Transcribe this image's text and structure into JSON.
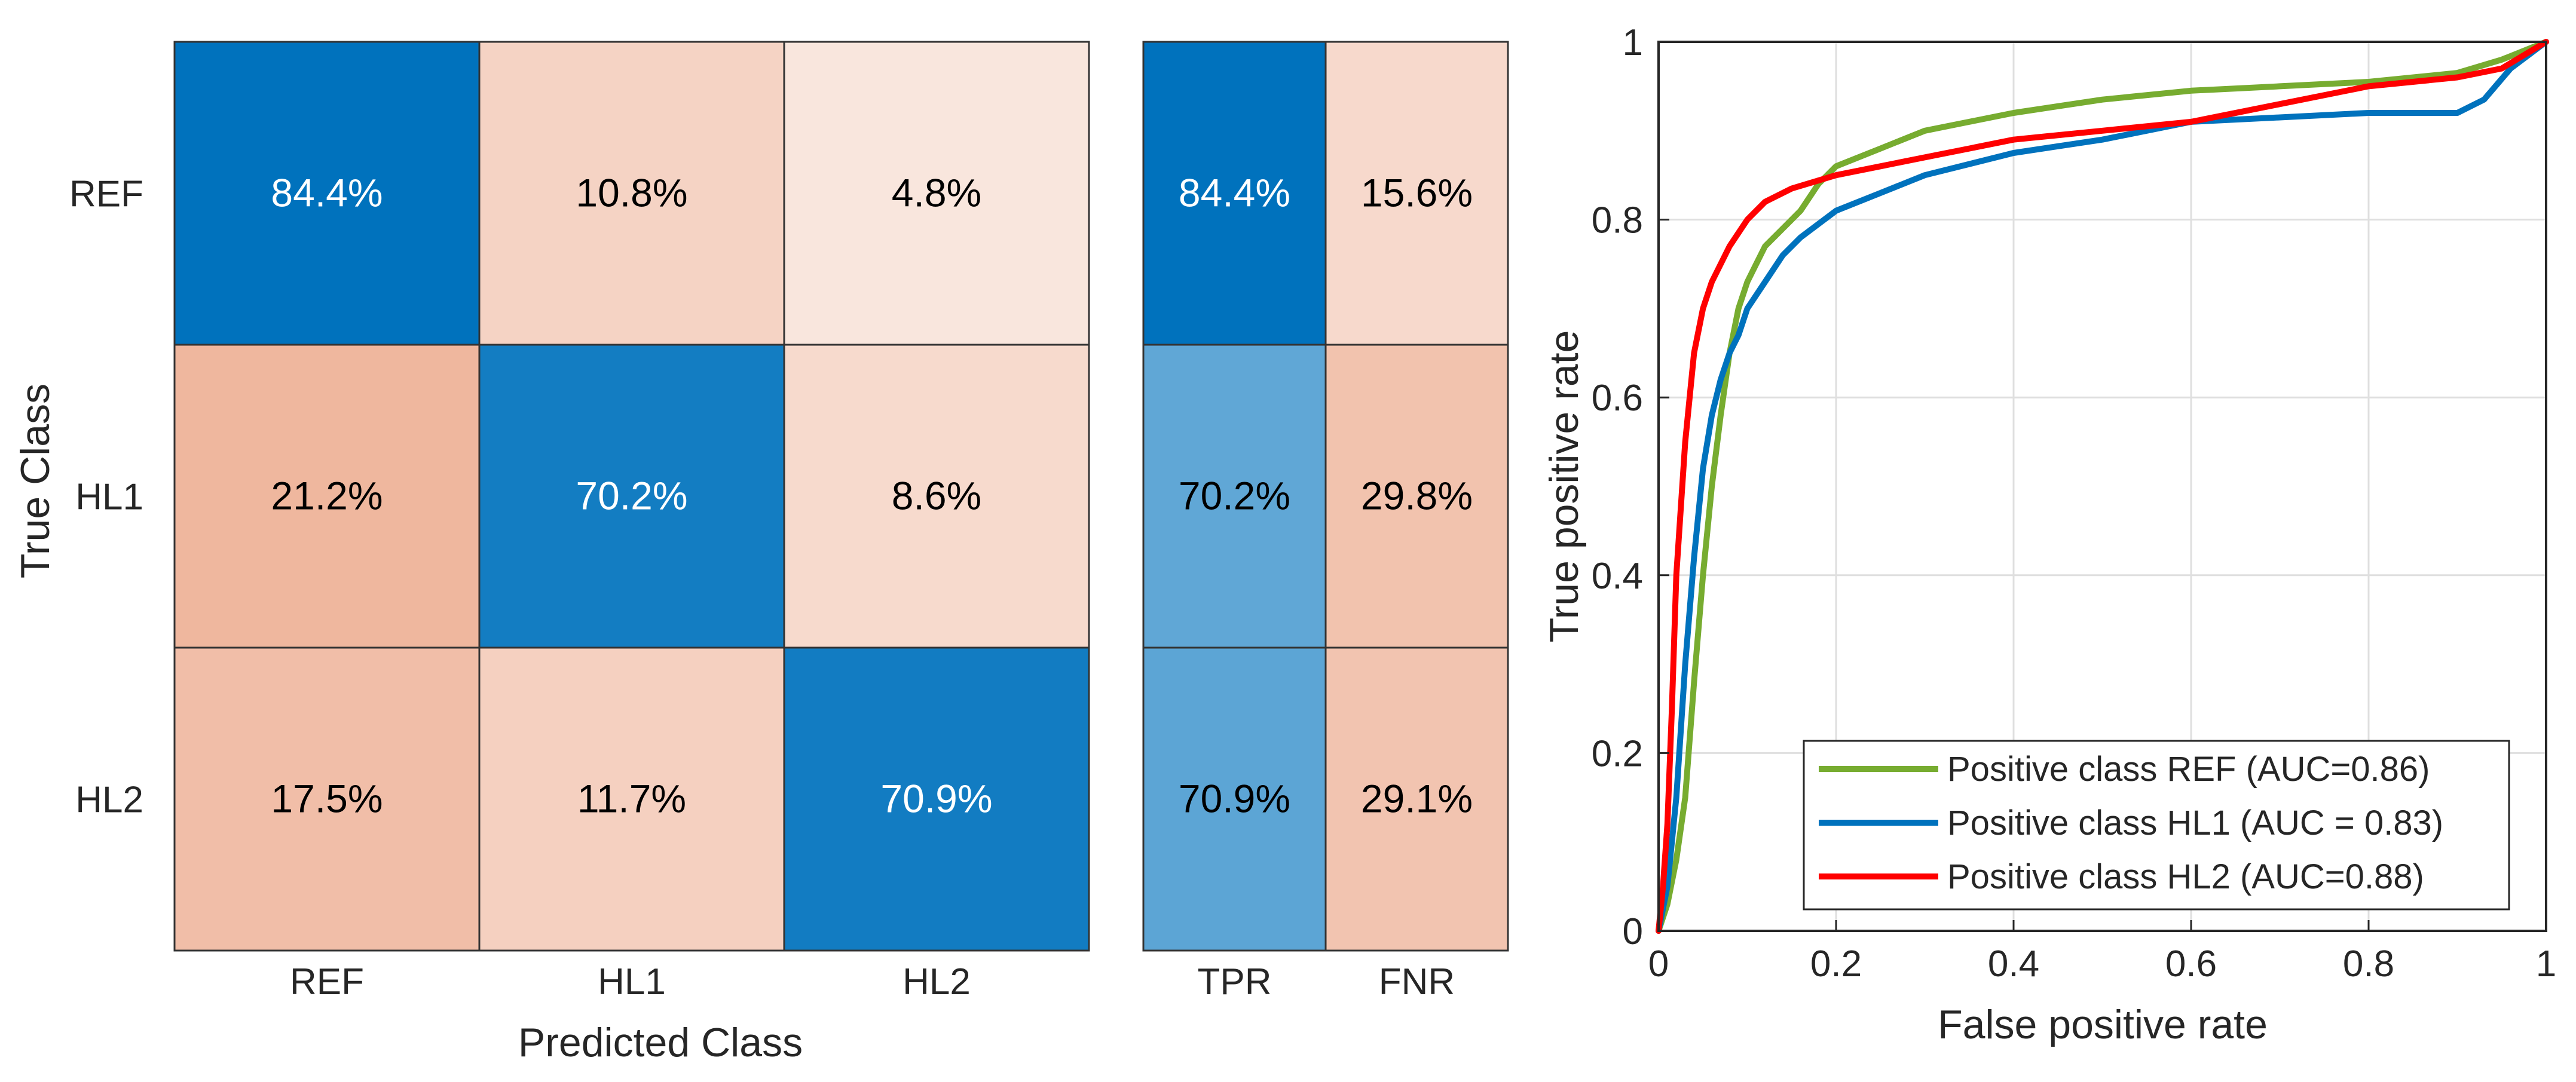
{
  "chart_data": [
    {
      "type": "heatmap",
      "title": "",
      "xlabel": "Predicted Class",
      "ylabel": "True Class",
      "x_categories": [
        "REF",
        "HL1",
        "HL2"
      ],
      "y_categories": [
        "REF",
        "HL1",
        "HL2"
      ],
      "values": [
        [
          84.4,
          10.8,
          4.8
        ],
        [
          21.2,
          70.2,
          8.6
        ],
        [
          17.5,
          11.7,
          70.9
        ]
      ],
      "labels": [
        [
          "84.4%",
          "10.8%",
          "4.8%"
        ],
        [
          "21.2%",
          "70.2%",
          "8.6%"
        ],
        [
          "17.5%",
          "11.7%",
          "70.9%"
        ]
      ],
      "summary": {
        "columns": [
          "TPR",
          "FNR"
        ],
        "values": [
          [
            84.4,
            15.6
          ],
          [
            70.2,
            29.8
          ],
          [
            70.9,
            29.1
          ]
        ],
        "labels": [
          [
            "84.4%",
            "15.6%"
          ],
          [
            "70.2%",
            "29.8%"
          ],
          [
            "70.9%",
            "29.1%"
          ]
        ]
      },
      "colors": {
        "positive": "#0072bd",
        "negative": "#d95319",
        "border": "#333333",
        "light_text": "#ffffff",
        "dark_text": "#000000"
      }
    },
    {
      "type": "line",
      "title": "",
      "xlabel": "False positive rate",
      "ylabel": "True positive rate",
      "xlim": [
        0,
        1
      ],
      "ylim": [
        0,
        1
      ],
      "xticks": [
        0,
        0.2,
        0.4,
        0.6,
        0.8,
        1
      ],
      "xtick_labels": [
        "0",
        "0.2",
        "0.4",
        "0.6",
        "0.8",
        "1"
      ],
      "yticks": [
        0,
        0.2,
        0.4,
        0.6,
        0.8,
        1
      ],
      "ytick_labels": [
        "0",
        "0.2",
        "0.4",
        "0.6",
        "0.8",
        "1"
      ],
      "grid": true,
      "legend_position": "bottom-right",
      "series": [
        {
          "name": "Positive class REF (AUC=0.86)",
          "color": "#77ac30",
          "x": [
            0,
            0.01,
            0.02,
            0.03,
            0.04,
            0.05,
            0.06,
            0.07,
            0.08,
            0.09,
            0.1,
            0.11,
            0.12,
            0.14,
            0.16,
            0.18,
            0.2,
            0.25,
            0.3,
            0.35,
            0.4,
            0.5,
            0.6,
            0.7,
            0.8,
            0.9,
            0.95,
            1.0
          ],
          "y": [
            0,
            0.03,
            0.08,
            0.15,
            0.28,
            0.4,
            0.5,
            0.58,
            0.65,
            0.7,
            0.73,
            0.75,
            0.77,
            0.79,
            0.81,
            0.84,
            0.86,
            0.88,
            0.9,
            0.91,
            0.92,
            0.935,
            0.945,
            0.95,
            0.955,
            0.965,
            0.98,
            1.0
          ]
        },
        {
          "name": "Positive class HL1 (AUC = 0.83)",
          "color": "#0072bd",
          "x": [
            0,
            0.01,
            0.02,
            0.03,
            0.04,
            0.05,
            0.06,
            0.07,
            0.08,
            0.09,
            0.1,
            0.12,
            0.14,
            0.16,
            0.2,
            0.25,
            0.3,
            0.4,
            0.5,
            0.6,
            0.7,
            0.8,
            0.9,
            0.93,
            0.96,
            1.0
          ],
          "y": [
            0,
            0.05,
            0.15,
            0.3,
            0.42,
            0.52,
            0.58,
            0.62,
            0.65,
            0.67,
            0.7,
            0.73,
            0.76,
            0.78,
            0.81,
            0.83,
            0.85,
            0.875,
            0.89,
            0.91,
            0.915,
            0.92,
            0.92,
            0.935,
            0.97,
            1.0
          ]
        },
        {
          "name": "Positive class HL2 (AUC=0.88)",
          "color": "#ff0000",
          "x": [
            0,
            0.005,
            0.01,
            0.015,
            0.02,
            0.03,
            0.04,
            0.05,
            0.06,
            0.08,
            0.1,
            0.12,
            0.15,
            0.2,
            0.25,
            0.3,
            0.35,
            0.4,
            0.5,
            0.6,
            0.7,
            0.8,
            0.9,
            0.95,
            1.0
          ],
          "y": [
            0,
            0.05,
            0.12,
            0.25,
            0.4,
            0.55,
            0.65,
            0.7,
            0.73,
            0.77,
            0.8,
            0.82,
            0.835,
            0.85,
            0.86,
            0.87,
            0.88,
            0.89,
            0.9,
            0.91,
            0.93,
            0.95,
            0.96,
            0.97,
            1.0
          ]
        }
      ]
    }
  ]
}
